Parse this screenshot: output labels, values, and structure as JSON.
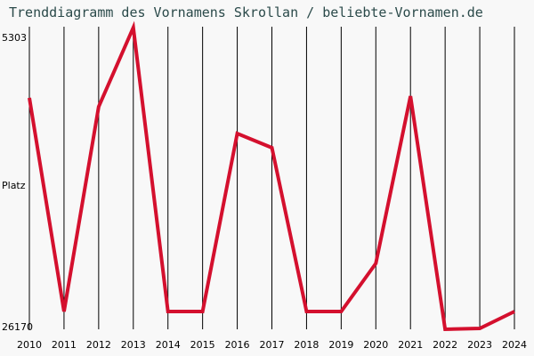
{
  "chart_data": {
    "type": "line",
    "title": "Trenddiagramm des Vornamens Skrollan / beliebte-Vornamen.de",
    "ylabel": "Platz",
    "x": [
      2010,
      2011,
      2012,
      2013,
      2014,
      2015,
      2016,
      2017,
      2018,
      2019,
      2020,
      2021,
      2022,
      2023,
      2024
    ],
    "series": [
      {
        "name": "Skrollan",
        "color": "#d4102e",
        "values": [
          10165,
          24938,
          10781,
          5303,
          24938,
          24938,
          12627,
          13612,
          24938,
          24938,
          21614,
          10042,
          26170,
          26108,
          24938
        ]
      }
    ],
    "xlim": [
      2010,
      2024
    ],
    "xticks": [
      2010,
      2011,
      2012,
      2013,
      2014,
      2015,
      2016,
      2017,
      2018,
      2019,
      2020,
      2021,
      2022,
      2023,
      2024
    ],
    "ylim": [
      26170,
      5303
    ],
    "yticks": [
      5303,
      26170
    ],
    "grid": true
  }
}
